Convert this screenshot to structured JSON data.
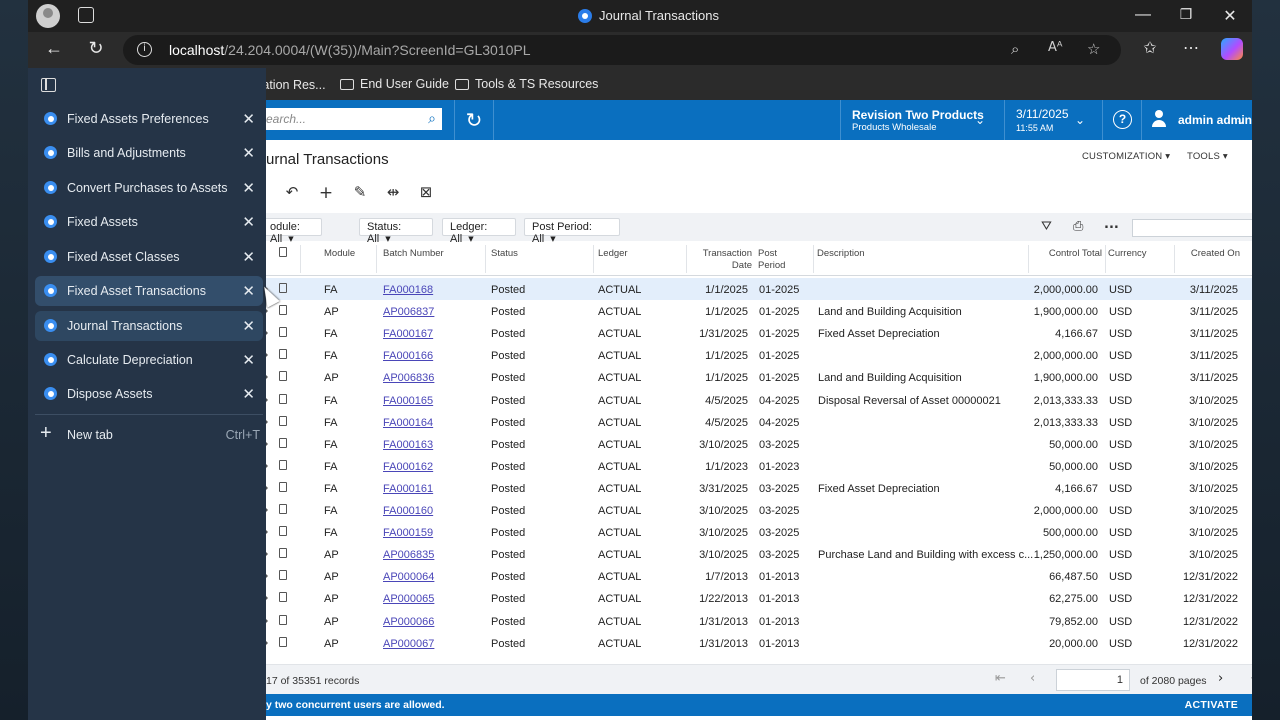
{
  "window": {
    "title": "Journal Transactions",
    "minimize": "—",
    "maximize": "❐",
    "close": "✕"
  },
  "address_bar": {
    "back": "←",
    "refresh": "↻",
    "url_host": "localhost",
    "url_path": "/24.204.0004/(W(35))/Main?ScreenId=GL3010PL"
  },
  "favorites": [
    {
      "label": "tation Res..."
    },
    {
      "label": "End User Guide"
    },
    {
      "label": "Tools & TS Resources"
    }
  ],
  "vertical_tabs": {
    "items": [
      {
        "label": "Fixed Assets Preferences"
      },
      {
        "label": "Bills and Adjustments"
      },
      {
        "label": "Convert Purchases to Assets"
      },
      {
        "label": "Fixed Assets"
      },
      {
        "label": "Fixed Asset Classes"
      },
      {
        "label": "Fixed Asset Transactions"
      },
      {
        "label": "Journal Transactions"
      },
      {
        "label": "Calculate Depreciation"
      },
      {
        "label": "Dispose Assets"
      }
    ],
    "new_tab_label": "New tab",
    "new_tab_shortcut": "Ctrl+T"
  },
  "app": {
    "search_placeholder": "earch...",
    "branch_name": "Revision Two Products",
    "branch_sub": "Products Wholesale",
    "date": "3/11/2025",
    "time": "11:55 AM",
    "help": "?",
    "user": "admin admin",
    "screen_title": "urnal Transactions",
    "customization": "CUSTOMIZATION",
    "tools": "TOOLS",
    "filters": [
      {
        "label": "odule: All"
      },
      {
        "label": "Status: All"
      },
      {
        "label": "Ledger: All"
      },
      {
        "label": "Post Period: All"
      }
    ],
    "more": "...",
    "columns": {
      "module": "Module",
      "batch": "Batch Number",
      "status": "Status",
      "ledger": "Ledger",
      "tran_date_1": "Transaction",
      "tran_date_2": "Date",
      "post_period_1": "Post",
      "post_period_2": "Period",
      "description": "Description",
      "control_total": "Control Total",
      "currency": "Currency",
      "created_on": "Created On"
    },
    "rows": [
      {
        "module": "FA",
        "batch": "FA000168",
        "status": "Posted",
        "ledger": "ACTUAL",
        "date": "1/1/2025",
        "period": "01-2025",
        "desc": "",
        "total": "2,000,000.00",
        "currency": "USD",
        "created": "3/11/2025"
      },
      {
        "module": "AP",
        "batch": "AP006837",
        "status": "Posted",
        "ledger": "ACTUAL",
        "date": "1/1/2025",
        "period": "01-2025",
        "desc": "Land and Building Acquisition",
        "total": "1,900,000.00",
        "currency": "USD",
        "created": "3/11/2025"
      },
      {
        "module": "FA",
        "batch": "FA000167",
        "status": "Posted",
        "ledger": "ACTUAL",
        "date": "1/31/2025",
        "period": "01-2025",
        "desc": "Fixed Asset Depreciation",
        "total": "4,166.67",
        "currency": "USD",
        "created": "3/11/2025"
      },
      {
        "module": "FA",
        "batch": "FA000166",
        "status": "Posted",
        "ledger": "ACTUAL",
        "date": "1/1/2025",
        "period": "01-2025",
        "desc": "",
        "total": "2,000,000.00",
        "currency": "USD",
        "created": "3/11/2025"
      },
      {
        "module": "AP",
        "batch": "AP006836",
        "status": "Posted",
        "ledger": "ACTUAL",
        "date": "1/1/2025",
        "period": "01-2025",
        "desc": "Land and Building Acquisition",
        "total": "1,900,000.00",
        "currency": "USD",
        "created": "3/11/2025"
      },
      {
        "module": "FA",
        "batch": "FA000165",
        "status": "Posted",
        "ledger": "ACTUAL",
        "date": "4/5/2025",
        "period": "04-2025",
        "desc": "Disposal Reversal of Asset 00000021",
        "total": "2,013,333.33",
        "currency": "USD",
        "created": "3/10/2025"
      },
      {
        "module": "FA",
        "batch": "FA000164",
        "status": "Posted",
        "ledger": "ACTUAL",
        "date": "4/5/2025",
        "period": "04-2025",
        "desc": "",
        "total": "2,013,333.33",
        "currency": "USD",
        "created": "3/10/2025"
      },
      {
        "module": "FA",
        "batch": "FA000163",
        "status": "Posted",
        "ledger": "ACTUAL",
        "date": "3/10/2025",
        "period": "03-2025",
        "desc": "",
        "total": "50,000.00",
        "currency": "USD",
        "created": "3/10/2025"
      },
      {
        "module": "FA",
        "batch": "FA000162",
        "status": "Posted",
        "ledger": "ACTUAL",
        "date": "1/1/2023",
        "period": "01-2023",
        "desc": "",
        "total": "50,000.00",
        "currency": "USD",
        "created": "3/10/2025"
      },
      {
        "module": "FA",
        "batch": "FA000161",
        "status": "Posted",
        "ledger": "ACTUAL",
        "date": "3/31/2025",
        "period": "03-2025",
        "desc": "Fixed Asset Depreciation",
        "total": "4,166.67",
        "currency": "USD",
        "created": "3/10/2025"
      },
      {
        "module": "FA",
        "batch": "FA000160",
        "status": "Posted",
        "ledger": "ACTUAL",
        "date": "3/10/2025",
        "period": "03-2025",
        "desc": "",
        "total": "2,000,000.00",
        "currency": "USD",
        "created": "3/10/2025"
      },
      {
        "module": "FA",
        "batch": "FA000159",
        "status": "Posted",
        "ledger": "ACTUAL",
        "date": "3/10/2025",
        "period": "03-2025",
        "desc": "",
        "total": "500,000.00",
        "currency": "USD",
        "created": "3/10/2025"
      },
      {
        "module": "AP",
        "batch": "AP006835",
        "status": "Posted",
        "ledger": "ACTUAL",
        "date": "3/10/2025",
        "period": "03-2025",
        "desc": "Purchase Land and Building with excess c...",
        "total": "1,250,000.00",
        "currency": "USD",
        "created": "3/10/2025"
      },
      {
        "module": "AP",
        "batch": "AP000064",
        "status": "Posted",
        "ledger": "ACTUAL",
        "date": "1/7/2013",
        "period": "01-2013",
        "desc": "",
        "total": "66,487.50",
        "currency": "USD",
        "created": "12/31/2022"
      },
      {
        "module": "AP",
        "batch": "AP000065",
        "status": "Posted",
        "ledger": "ACTUAL",
        "date": "1/22/2013",
        "period": "01-2013",
        "desc": "",
        "total": "62,275.00",
        "currency": "USD",
        "created": "12/31/2022"
      },
      {
        "module": "AP",
        "batch": "AP000066",
        "status": "Posted",
        "ledger": "ACTUAL",
        "date": "1/31/2013",
        "period": "01-2013",
        "desc": "",
        "total": "79,852.00",
        "currency": "USD",
        "created": "12/31/2022"
      },
      {
        "module": "AP",
        "batch": "AP000067",
        "status": "Posted",
        "ledger": "ACTUAL",
        "date": "1/31/2013",
        "period": "01-2013",
        "desc": "",
        "total": "20,000.00",
        "currency": "USD",
        "created": "12/31/2022"
      }
    ],
    "records_text": "17 of 35351 records",
    "page_value": "1",
    "of_pages": "of 2080 pages",
    "license_text": "y two concurrent users are allowed.",
    "activate": "ACTIVATE"
  },
  "colors": {
    "accent": "#0a6fbf",
    "link": "#4a46b8",
    "sidebar_bg": "#253447",
    "selected_row": "#e3eefb"
  }
}
